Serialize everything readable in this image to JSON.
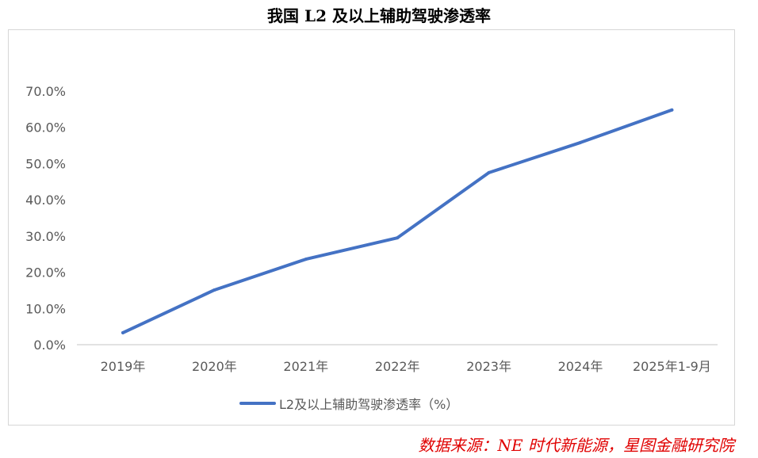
{
  "chart_data": {
    "type": "line",
    "title": "我国 L2 及以上辅助驾驶渗透率",
    "categories": [
      "2019年",
      "2020年",
      "2021年",
      "2022年",
      "2023年",
      "2024年",
      "2025年1-9月"
    ],
    "series": [
      {
        "name": "L2及以上辅助驾驶渗透率（%）",
        "values": [
          3.3,
          15.1,
          23.6,
          29.5,
          47.5,
          55.8,
          64.8
        ],
        "color": "#4472c4"
      }
    ],
    "yticks": [
      "0.0%",
      "10.0%",
      "20.0%",
      "30.0%",
      "40.0%",
      "50.0%",
      "60.0%",
      "70.0%"
    ],
    "ylim": [
      0,
      70
    ],
    "xlabel": "",
    "ylabel": "",
    "grid": false,
    "legend_position": "bottom"
  },
  "source": "数据来源：NE 时代新能源，星图金融研究院"
}
